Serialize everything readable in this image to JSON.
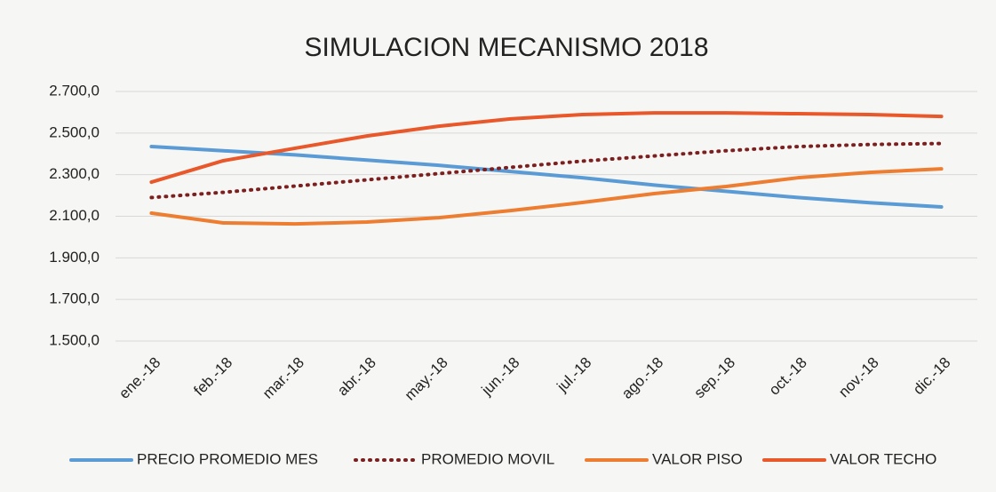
{
  "chart_data": {
    "type": "line",
    "title": "SIMULACION  MECANISMO 2018",
    "categories": [
      "ene.-18",
      "feb.-18",
      "mar.-18",
      "abr.-18",
      "may.-18",
      "jun.-18",
      "jul.-18",
      "ago.-18",
      "sep.-18",
      "oct.-18",
      "nov.-18",
      "dic.-18"
    ],
    "series": [
      {
        "name": "PRECIO PROMEDIO MES",
        "color": "#5b9bd5",
        "style": "solid",
        "values": [
          2435,
          2415,
          2395,
          2370,
          2345,
          2315,
          2285,
          2250,
          2220,
          2190,
          2165,
          2145
        ]
      },
      {
        "name": "PROMEDIO MOVIL",
        "color": "#7b1f1f",
        "style": "dotted",
        "values": [
          2190,
          2215,
          2245,
          2275,
          2305,
          2335,
          2365,
          2390,
          2415,
          2435,
          2445,
          2450
        ]
      },
      {
        "name": "VALOR PISO",
        "color": "#ed7d31",
        "style": "solid",
        "values": [
          2115,
          2068,
          2063,
          2072,
          2093,
          2127,
          2166,
          2209,
          2243,
          2285,
          2311,
          2328
        ]
      },
      {
        "name": "VALOR TECHO",
        "color": "#e8582a",
        "style": "solid",
        "values": [
          2264,
          2367,
          2427,
          2486,
          2533,
          2568,
          2589,
          2597,
          2597,
          2593,
          2589,
          2580
        ]
      }
    ],
    "ylim": [
      1500,
      2700
    ],
    "yticks": [
      {
        "value": 1500,
        "label": "1.500,0"
      },
      {
        "value": 1700,
        "label": "1.700,0"
      },
      {
        "value": 1900,
        "label": "1.900,0"
      },
      {
        "value": 2100,
        "label": "2.100,0"
      },
      {
        "value": 2300,
        "label": "2.300,0"
      },
      {
        "value": 2500,
        "label": "2.500,0"
      },
      {
        "value": 2700,
        "label": "2.700,0"
      }
    ],
    "grid": true,
    "legend": "bottom"
  }
}
